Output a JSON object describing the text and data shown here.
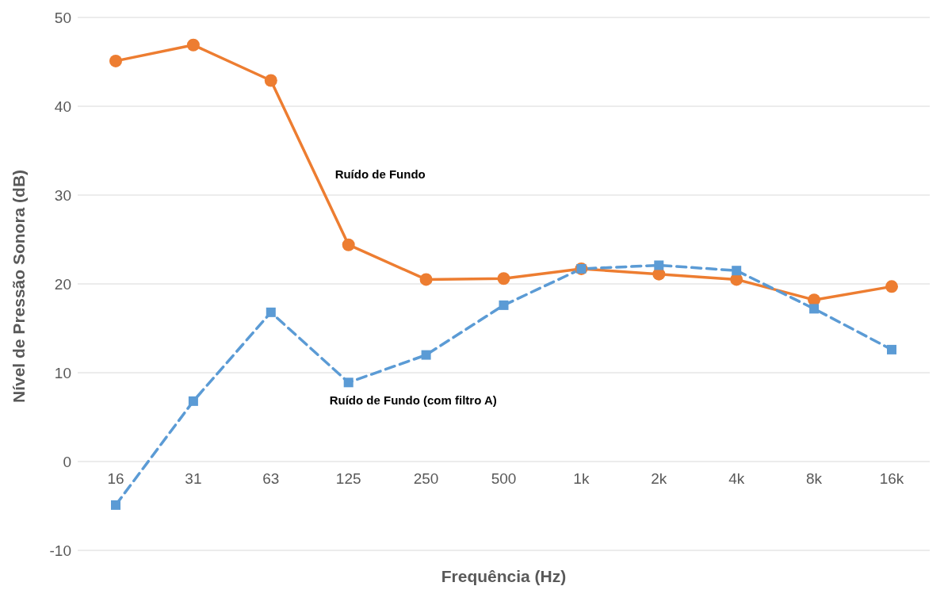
{
  "chart_data": {
    "type": "line",
    "xlabel": "Frequência (Hz)",
    "ylabel": "Nível de Pressão Sonora (dB)",
    "categories": [
      "16",
      "31",
      "63",
      "125",
      "250",
      "500",
      "1k",
      "2k",
      "4k",
      "8k",
      "16k"
    ],
    "series": [
      {
        "name": "Ruído de Fundo",
        "color": "#ed7d31",
        "marker": "circle",
        "line_style": "solid",
        "values": [
          45.1,
          46.9,
          42.9,
          24.4,
          20.5,
          20.6,
          21.7,
          21.1,
          20.5,
          18.2,
          19.7
        ]
      },
      {
        "name": "Ruído de Fundo (com filtro A)",
        "color": "#5b9bd5",
        "marker": "square",
        "line_style": "dashed",
        "values": [
          -4.9,
          6.8,
          16.8,
          8.9,
          12.0,
          17.6,
          21.7,
          22.1,
          21.5,
          17.2,
          12.6
        ]
      }
    ],
    "ylim": [
      -10,
      50
    ],
    "yticks": [
      -10,
      0,
      10,
      20,
      30,
      40,
      50
    ],
    "grid": "y",
    "legend": false
  }
}
